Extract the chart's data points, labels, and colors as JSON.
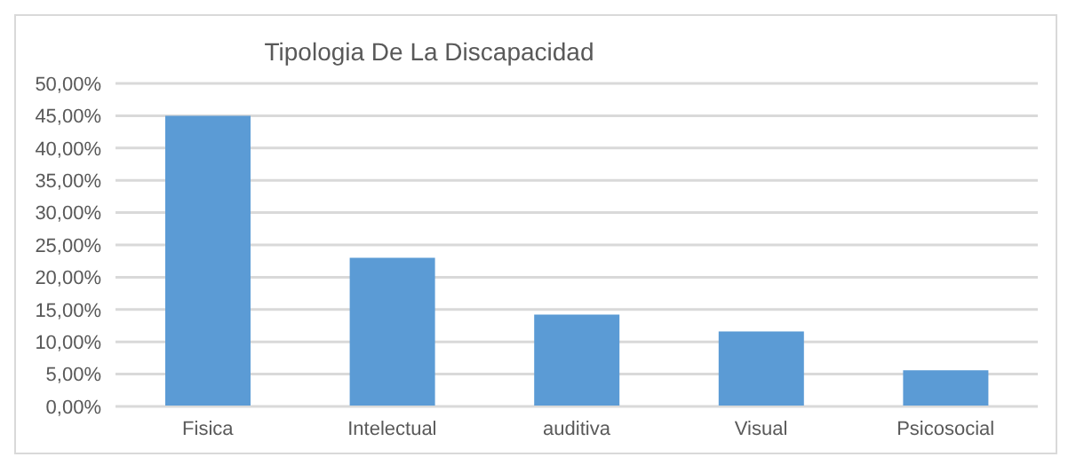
{
  "chart_data": {
    "type": "bar",
    "title": "Tipologia De La Discapacidad",
    "categories": [
      "Fisica",
      "Intelectual",
      "auditiva",
      "Visual",
      "Psicosocial"
    ],
    "values": [
      45,
      23,
      14.2,
      11.6,
      5.6
    ],
    "color": "#5b9bd5",
    "ylim": [
      0,
      50
    ],
    "yticks": [
      {
        "value": 0,
        "label": "0,00%"
      },
      {
        "value": 5,
        "label": "5,00%"
      },
      {
        "value": 10,
        "label": "10,00%"
      },
      {
        "value": 15,
        "label": "15,00%"
      },
      {
        "value": 20,
        "label": "20,00%"
      },
      {
        "value": 25,
        "label": "25,00%"
      },
      {
        "value": 30,
        "label": "30,00%"
      },
      {
        "value": 35,
        "label": "35,00%"
      },
      {
        "value": 40,
        "label": "40,00%"
      },
      {
        "value": 45,
        "label": "45,00%"
      },
      {
        "value": 50,
        "label": "50,00%"
      }
    ],
    "grid": "y",
    "legend": false
  }
}
